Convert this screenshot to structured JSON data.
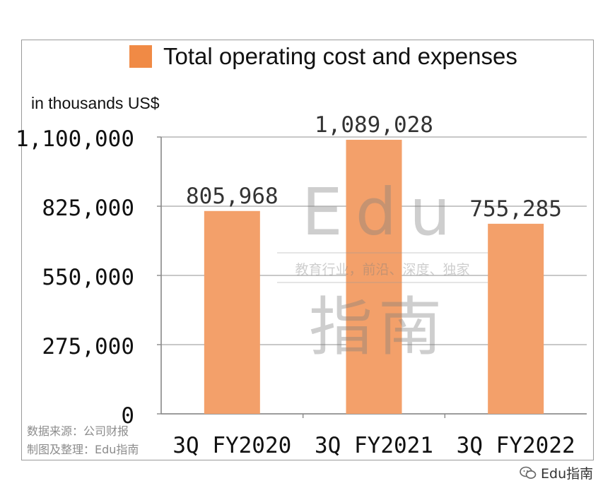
{
  "legend": {
    "label": "Total operating cost and expenses",
    "color": "#f08a45"
  },
  "unit_label": "in thousands US$",
  "source_lines": [
    "数据来源：公司财报",
    "制图及整理：Edu指南"
  ],
  "watermark": {
    "brand": "Edu",
    "tagline": "教育行业，前沿、深度、独家",
    "chinese": "指南"
  },
  "corner_brand": {
    "icon": "wechat-icon",
    "label": "Edu指南"
  },
  "chart_data": {
    "type": "bar",
    "categories": [
      "3Q FY2020",
      "3Q FY2021",
      "3Q FY2022"
    ],
    "series": [
      {
        "name": "Total operating cost and expenses",
        "values": [
          805968,
          1089028,
          755285
        ]
      }
    ],
    "data_labels": [
      "805,968",
      "1,089,028",
      "755,285"
    ],
    "ylim": [
      0,
      1100000
    ],
    "yticks": [
      0,
      275000,
      550000,
      825000,
      1100000
    ],
    "ytick_labels": [
      "0",
      "275,000",
      "550,000",
      "825,000",
      "1,100,000"
    ],
    "ylabel": "in thousands US$",
    "grid": true,
    "legend_position": "top",
    "bar_color": "#f3a06a"
  }
}
